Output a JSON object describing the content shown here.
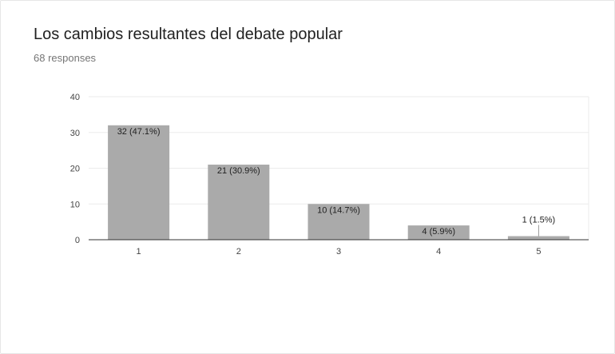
{
  "header": {
    "title": "Los cambios resultantes del debate popular",
    "responses": "68 responses"
  },
  "colors": {
    "bar": "#aaaaaa",
    "grid": "#ebebeb",
    "axis": "#333333"
  },
  "chart_data": {
    "type": "bar",
    "categories": [
      "1",
      "2",
      "3",
      "4",
      "5"
    ],
    "values": [
      32,
      21,
      10,
      4,
      1
    ],
    "data_labels": [
      "32 (47.1%)",
      "21 (30.9%)",
      "10 (14.7%)",
      "4 (5.9%)",
      "1 (1.5%)"
    ],
    "ylim": [
      0,
      40
    ],
    "yticks": [
      "0",
      "10",
      "20",
      "30",
      "40"
    ],
    "grid": true,
    "xlabel": "",
    "ylabel": ""
  }
}
